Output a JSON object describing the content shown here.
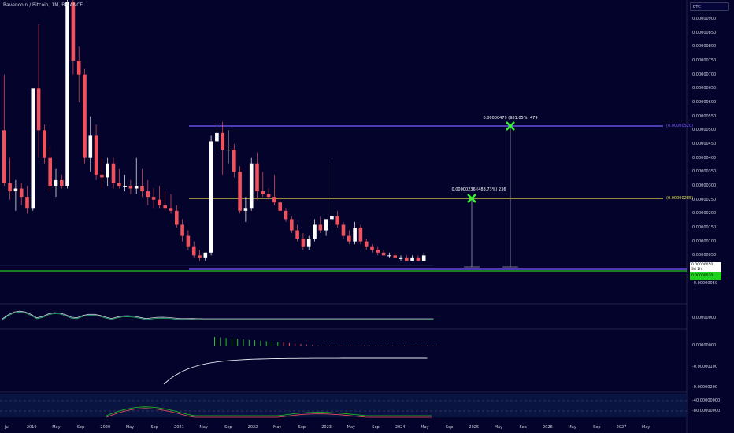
{
  "header": {
    "symbol": "Ravencoin / Bitcoin, 1M, BINANCE",
    "currency": "BTC"
  },
  "price_axis": {
    "labels": [
      "0.00000900",
      "0.00000850",
      "0.00000800",
      "0.00000750",
      "0.00000700",
      "0.00000650",
      "0.00000600",
      "0.00000550",
      "0.00000500",
      "0.00000450",
      "0.00000400",
      "0.00000350",
      "0.00000300",
      "0.00000250",
      "0.00000200",
      "0.00000150",
      "0.00000100",
      "0.00000050",
      "-0.00000050"
    ],
    "current_price": "0.00000050",
    "current_time": "3d 1h",
    "current_price_green": "0.00000030"
  },
  "indicator_axes": {
    "panel1": [
      "0.00000000"
    ],
    "panel2": [
      "0.00000000",
      "-0.00000100",
      "-0.00000200"
    ],
    "panel3": [
      "-40.00000000",
      "-80.00000000"
    ]
  },
  "time_axis": {
    "labels": [
      "Jul",
      "2019",
      "May",
      "Sep",
      "2020",
      "May",
      "Sep",
      "2021",
      "May",
      "Sep",
      "2022",
      "May",
      "Sep",
      "2023",
      "May",
      "Sep",
      "2024",
      "May",
      "Sep",
      "2025",
      "May",
      "Sep",
      "2026",
      "May",
      "Sep",
      "2027",
      "May"
    ]
  },
  "levels": {
    "purple_label": "(0.00000520)",
    "yellow_label": "(0.00000285)"
  },
  "annotations": {
    "target1": "0.00000236 (483.73%) 236",
    "target2": "0.00000479 (981.05%) 479"
  },
  "colors": {
    "background": "#03032b",
    "up": "#ffffff",
    "down": "#f0525d",
    "purple_line": "#7b5cff",
    "yellow_line": "#e6e04a",
    "green_line": "#22c522",
    "target_mark": "#3bef3b"
  },
  "chart_data": {
    "type": "candlestick",
    "interval": "1M",
    "x_range": [
      "2018-07",
      "2027-05"
    ],
    "y_range": [
      -6e-07,
      9.4e-06
    ],
    "candles": [
      {
        "o": 5e-06,
        "h": 7e-06,
        "l": 3e-06,
        "c": 3.1e-06
      },
      {
        "o": 3.1e-06,
        "h": 4e-06,
        "l": 2.5e-06,
        "c": 2.8e-06
      },
      {
        "o": 2.8e-06,
        "h": 3.2e-06,
        "l": 2.1e-06,
        "c": 2.9e-06
      },
      {
        "o": 2.9e-06,
        "h": 3.1e-06,
        "l": 2.3e-06,
        "c": 2.6e-06
      },
      {
        "o": 2.6e-06,
        "h": 3e-06,
        "l": 2e-06,
        "c": 2.2e-06
      },
      {
        "o": 2.2e-06,
        "h": 6.5e-06,
        "l": 2.1e-06,
        "c": 6.5e-06
      },
      {
        "o": 6.5e-06,
        "h": 8.8e-06,
        "l": 4e-06,
        "c": 5e-06
      },
      {
        "o": 5e-06,
        "h": 5.2e-06,
        "l": 3.8e-06,
        "c": 4e-06
      },
      {
        "o": 4e-06,
        "h": 4.4e-06,
        "l": 2.8e-06,
        "c": 3e-06
      },
      {
        "o": 3e-06,
        "h": 3.6e-06,
        "l": 2.6e-06,
        "c": 3.2e-06
      },
      {
        "o": 3.2e-06,
        "h": 3.4e-06,
        "l": 2.9e-06,
        "c": 3e-06
      },
      {
        "o": 3e-06,
        "h": 1e-05,
        "l": 2.9e-06,
        "c": 9.6e-06
      },
      {
        "o": 9.6e-06,
        "h": 1e-05,
        "l": 7e-06,
        "c": 7.5e-06
      },
      {
        "o": 7.5e-06,
        "h": 8e-06,
        "l": 6e-06,
        "c": 7e-06
      },
      {
        "o": 7e-06,
        "h": 7.2e-06,
        "l": 3.8e-06,
        "c": 4e-06
      },
      {
        "o": 4e-06,
        "h": 5.5e-06,
        "l": 3.5e-06,
        "c": 4.8e-06
      },
      {
        "o": 4.8e-06,
        "h": 5.2e-06,
        "l": 3.2e-06,
        "c": 3.4e-06
      },
      {
        "o": 3.4e-06,
        "h": 4e-06,
        "l": 2.9e-06,
        "c": 3.3e-06
      },
      {
        "o": 3.3e-06,
        "h": 4e-06,
        "l": 3e-06,
        "c": 3.8e-06
      },
      {
        "o": 3.8e-06,
        "h": 4e-06,
        "l": 2.9e-06,
        "c": 3.1e-06
      },
      {
        "o": 3.1e-06,
        "h": 3.6e-06,
        "l": 2.9e-06,
        "c": 3e-06
      },
      {
        "o": 3e-06,
        "h": 3.4e-06,
        "l": 2.8e-06,
        "c": 3e-06
      },
      {
        "o": 3e-06,
        "h": 3.2e-06,
        "l": 2.7e-06,
        "c": 2.9e-06
      },
      {
        "o": 2.9e-06,
        "h": 4e-06,
        "l": 2.7e-06,
        "c": 3e-06
      },
      {
        "o": 3e-06,
        "h": 3.6e-06,
        "l": 2.6e-06,
        "c": 2.8e-06
      },
      {
        "o": 2.8e-06,
        "h": 3.2e-06,
        "l": 2.3e-06,
        "c": 2.6e-06
      },
      {
        "o": 2.6e-06,
        "h": 2.9e-06,
        "l": 2.2e-06,
        "c": 2.5e-06
      },
      {
        "o": 2.5e-06,
        "h": 3e-06,
        "l": 2.2e-06,
        "c": 2.3e-06
      },
      {
        "o": 2.3e-06,
        "h": 2.8e-06,
        "l": 2.1e-06,
        "c": 2.2e-06
      },
      {
        "o": 2.2e-06,
        "h": 2.7e-06,
        "l": 2e-06,
        "c": 2.1e-06
      },
      {
        "o": 2.1e-06,
        "h": 2.3e-06,
        "l": 1.5e-06,
        "c": 1.6e-06
      },
      {
        "o": 1.6e-06,
        "h": 1.8e-06,
        "l": 1e-06,
        "c": 1.2e-06
      },
      {
        "o": 1.2e-06,
        "h": 1.4e-06,
        "l": 7e-07,
        "c": 8e-07
      },
      {
        "o": 8e-07,
        "h": 1e-06,
        "l": 4e-07,
        "c": 5e-07
      },
      {
        "o": 5e-07,
        "h": 7e-07,
        "l": 3e-07,
        "c": 4e-07
      },
      {
        "o": 4e-07,
        "h": 6e-07,
        "l": 3e-07,
        "c": 6e-07
      },
      {
        "o": 6e-07,
        "h": 4.8e-06,
        "l": 5e-07,
        "c": 4.6e-06
      },
      {
        "o": 4.6e-06,
        "h": 5.2e-06,
        "l": 4.2e-06,
        "c": 4.9e-06
      },
      {
        "o": 4.9e-06,
        "h": 5.3e-06,
        "l": 3.4e-06,
        "c": 4.3e-06
      },
      {
        "o": 4.3e-06,
        "h": 5e-06,
        "l": 3.8e-06,
        "c": 4.3e-06
      },
      {
        "o": 4.3e-06,
        "h": 4.5e-06,
        "l": 3.3e-06,
        "c": 3.5e-06
      },
      {
        "o": 3.5e-06,
        "h": 3.7e-06,
        "l": 2e-06,
        "c": 2.1e-06
      },
      {
        "o": 2.1e-06,
        "h": 2.6e-06,
        "l": 1.7e-06,
        "c": 2.2e-06
      },
      {
        "o": 2.2e-06,
        "h": 4e-06,
        "l": 2.1e-06,
        "c": 3.8e-06
      },
      {
        "o": 3.8e-06,
        "h": 4.2e-06,
        "l": 2.5e-06,
        "c": 2.8e-06
      },
      {
        "o": 2.8e-06,
        "h": 3.5e-06,
        "l": 2.6e-06,
        "c": 2.7e-06
      },
      {
        "o": 2.7e-06,
        "h": 2.9e-06,
        "l": 2.5e-06,
        "c": 2.6e-06
      },
      {
        "o": 2.6e-06,
        "h": 3.4e-06,
        "l": 2.3e-06,
        "c": 2.4e-06
      },
      {
        "o": 2.4e-06,
        "h": 2.6e-06,
        "l": 2e-06,
        "c": 2.1e-06
      },
      {
        "o": 2.1e-06,
        "h": 2.2e-06,
        "l": 1.7e-06,
        "c": 1.8e-06
      },
      {
        "o": 1.8e-06,
        "h": 1.9e-06,
        "l": 1.3e-06,
        "c": 1.4e-06
      },
      {
        "o": 1.4e-06,
        "h": 1.6e-06,
        "l": 1e-06,
        "c": 1.1e-06
      },
      {
        "o": 1.1e-06,
        "h": 1.3e-06,
        "l": 7e-07,
        "c": 8e-07
      },
      {
        "o": 8e-07,
        "h": 1.2e-06,
        "l": 7e-07,
        "c": 1.1e-06
      },
      {
        "o": 1.1e-06,
        "h": 1.8e-06,
        "l": 1e-06,
        "c": 1.6e-06
      },
      {
        "o": 1.6e-06,
        "h": 1.9e-06,
        "l": 1.3e-06,
        "c": 1.4e-06
      },
      {
        "o": 1.4e-06,
        "h": 1.8e-06,
        "l": 1.2e-06,
        "c": 1.8e-06
      },
      {
        "o": 1.8e-06,
        "h": 3.9e-06,
        "l": 1.6e-06,
        "c": 1.9e-06
      },
      {
        "o": 1.9e-06,
        "h": 2.1e-06,
        "l": 1.5e-06,
        "c": 1.6e-06
      },
      {
        "o": 1.6e-06,
        "h": 1.7e-06,
        "l": 1.1e-06,
        "c": 1.2e-06
      },
      {
        "o": 1.2e-06,
        "h": 1.4e-06,
        "l": 9e-07,
        "c": 1e-06
      },
      {
        "o": 1e-06,
        "h": 1.7e-06,
        "l": 9e-07,
        "c": 1.5e-06
      },
      {
        "o": 1.5e-06,
        "h": 1.6e-06,
        "l": 9e-07,
        "c": 1e-06
      },
      {
        "o": 1e-06,
        "h": 1.1e-06,
        "l": 7e-07,
        "c": 8e-07
      },
      {
        "o": 8e-07,
        "h": 9e-07,
        "l": 6e-07,
        "c": 7e-07
      },
      {
        "o": 7e-07,
        "h": 8e-07,
        "l": 5e-07,
        "c": 6e-07
      },
      {
        "o": 6e-07,
        "h": 7e-07,
        "l": 5e-07,
        "c": 5e-07
      },
      {
        "o": 5e-07,
        "h": 6e-07,
        "l": 4e-07,
        "c": 5e-07
      },
      {
        "o": 5e-07,
        "h": 6e-07,
        "l": 4e-07,
        "c": 4e-07
      },
      {
        "o": 4e-07,
        "h": 5e-07,
        "l": 3e-07,
        "c": 4e-07
      },
      {
        "o": 4e-07,
        "h": 5e-07,
        "l": 3e-07,
        "c": 3e-07
      },
      {
        "o": 3e-07,
        "h": 5e-07,
        "l": 3e-07,
        "c": 4e-07
      },
      {
        "o": 4e-07,
        "h": 5e-07,
        "l": 3e-07,
        "c": 3e-07
      },
      {
        "o": 3e-07,
        "h": 6e-07,
        "l": 3e-07,
        "c": 5e-07
      }
    ]
  }
}
